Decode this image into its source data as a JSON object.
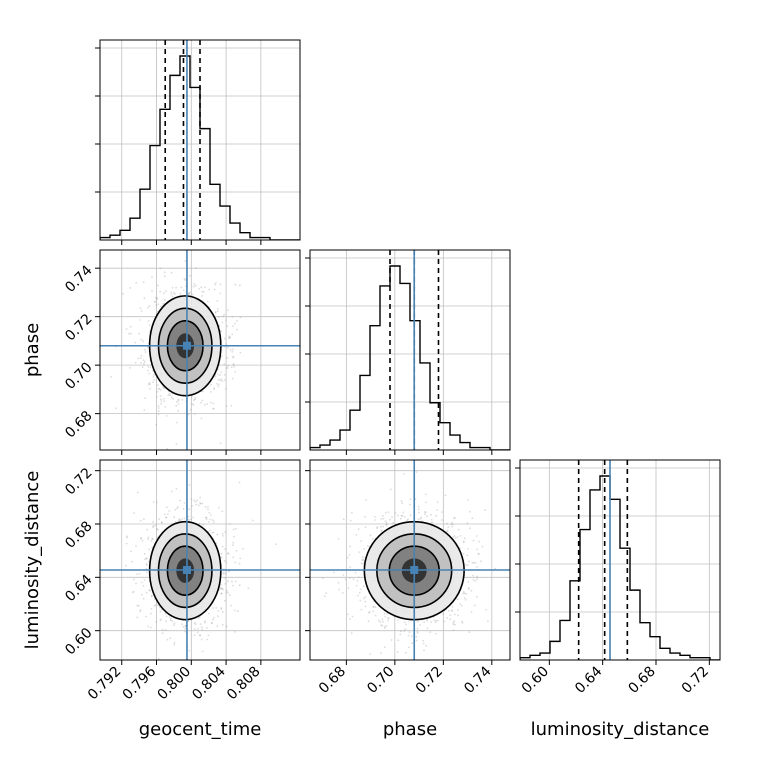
{
  "chart_data": {
    "type": "corner",
    "grid": true,
    "params": [
      {
        "name": "geocent_time",
        "label": "geocent_time",
        "range": [
          0.7895,
          0.8125
        ],
        "ticks": [
          "0.792",
          "0.796",
          "0.800",
          "0.804",
          "0.808"
        ],
        "truth": 0.7995,
        "quantiles": [
          0.797,
          0.7991,
          0.801
        ],
        "hist": [
          1,
          2,
          4,
          9,
          21,
          39,
          54,
          68,
          76,
          63,
          46,
          23,
          14,
          7,
          3,
          1,
          1,
          0,
          0,
          0
        ]
      },
      {
        "name": "phase",
        "label": "phase",
        "range": [
          0.665,
          0.7475
        ],
        "ticks": [
          "0.68",
          "0.70",
          "0.72",
          "0.74"
        ],
        "truth": 0.708,
        "quantiles": [
          0.698,
          0.708,
          0.718
        ],
        "hist": [
          1,
          2,
          4,
          8,
          16,
          30,
          50,
          66,
          74,
          67,
          52,
          35,
          19,
          11,
          6,
          3,
          1,
          1,
          0,
          0
        ]
      },
      {
        "name": "luminosity_distance",
        "label": "luminosity_distance",
        "range": [
          0.578,
          0.728
        ],
        "ticks": [
          "0.60",
          "0.64",
          "0.68",
          "0.72"
        ],
        "truth": 0.6455,
        "quantiles": [
          0.622,
          0.6415,
          0.6585
        ],
        "hist": [
          1,
          2,
          3,
          8,
          17,
          34,
          56,
          73,
          79,
          69,
          48,
          30,
          16,
          10,
          5,
          3,
          2,
          1,
          1,
          0
        ]
      }
    ],
    "pairs": [
      {
        "x": "geocent_time",
        "y": "phase",
        "center": [
          0.7993,
          0.708
        ],
        "sigma": [
          0.00195,
          0.0098
        ],
        "scatter_radius": [
          0.0105,
          0.047
        ]
      },
      {
        "x": "geocent_time",
        "y": "luminosity_distance",
        "center": [
          0.7993,
          0.645
        ],
        "sigma": [
          0.00195,
          0.0175
        ],
        "scatter_radius": [
          0.0105,
          0.08
        ]
      },
      {
        "x": "phase",
        "y": "luminosity_distance",
        "center": [
          0.708,
          0.645
        ],
        "sigma": [
          0.0098,
          0.0175
        ],
        "scatter_radius": [
          0.047,
          0.08
        ]
      }
    ],
    "contour_levels_sigma": [
      0.5,
      1.0,
      1.5,
      2.0
    ],
    "colors": {
      "truth": "#4682b4",
      "hist": "#000000",
      "quantile": "#000000",
      "grid": "#c0c0c0",
      "scatter": "#9a9a9a",
      "density": "#000000"
    }
  }
}
